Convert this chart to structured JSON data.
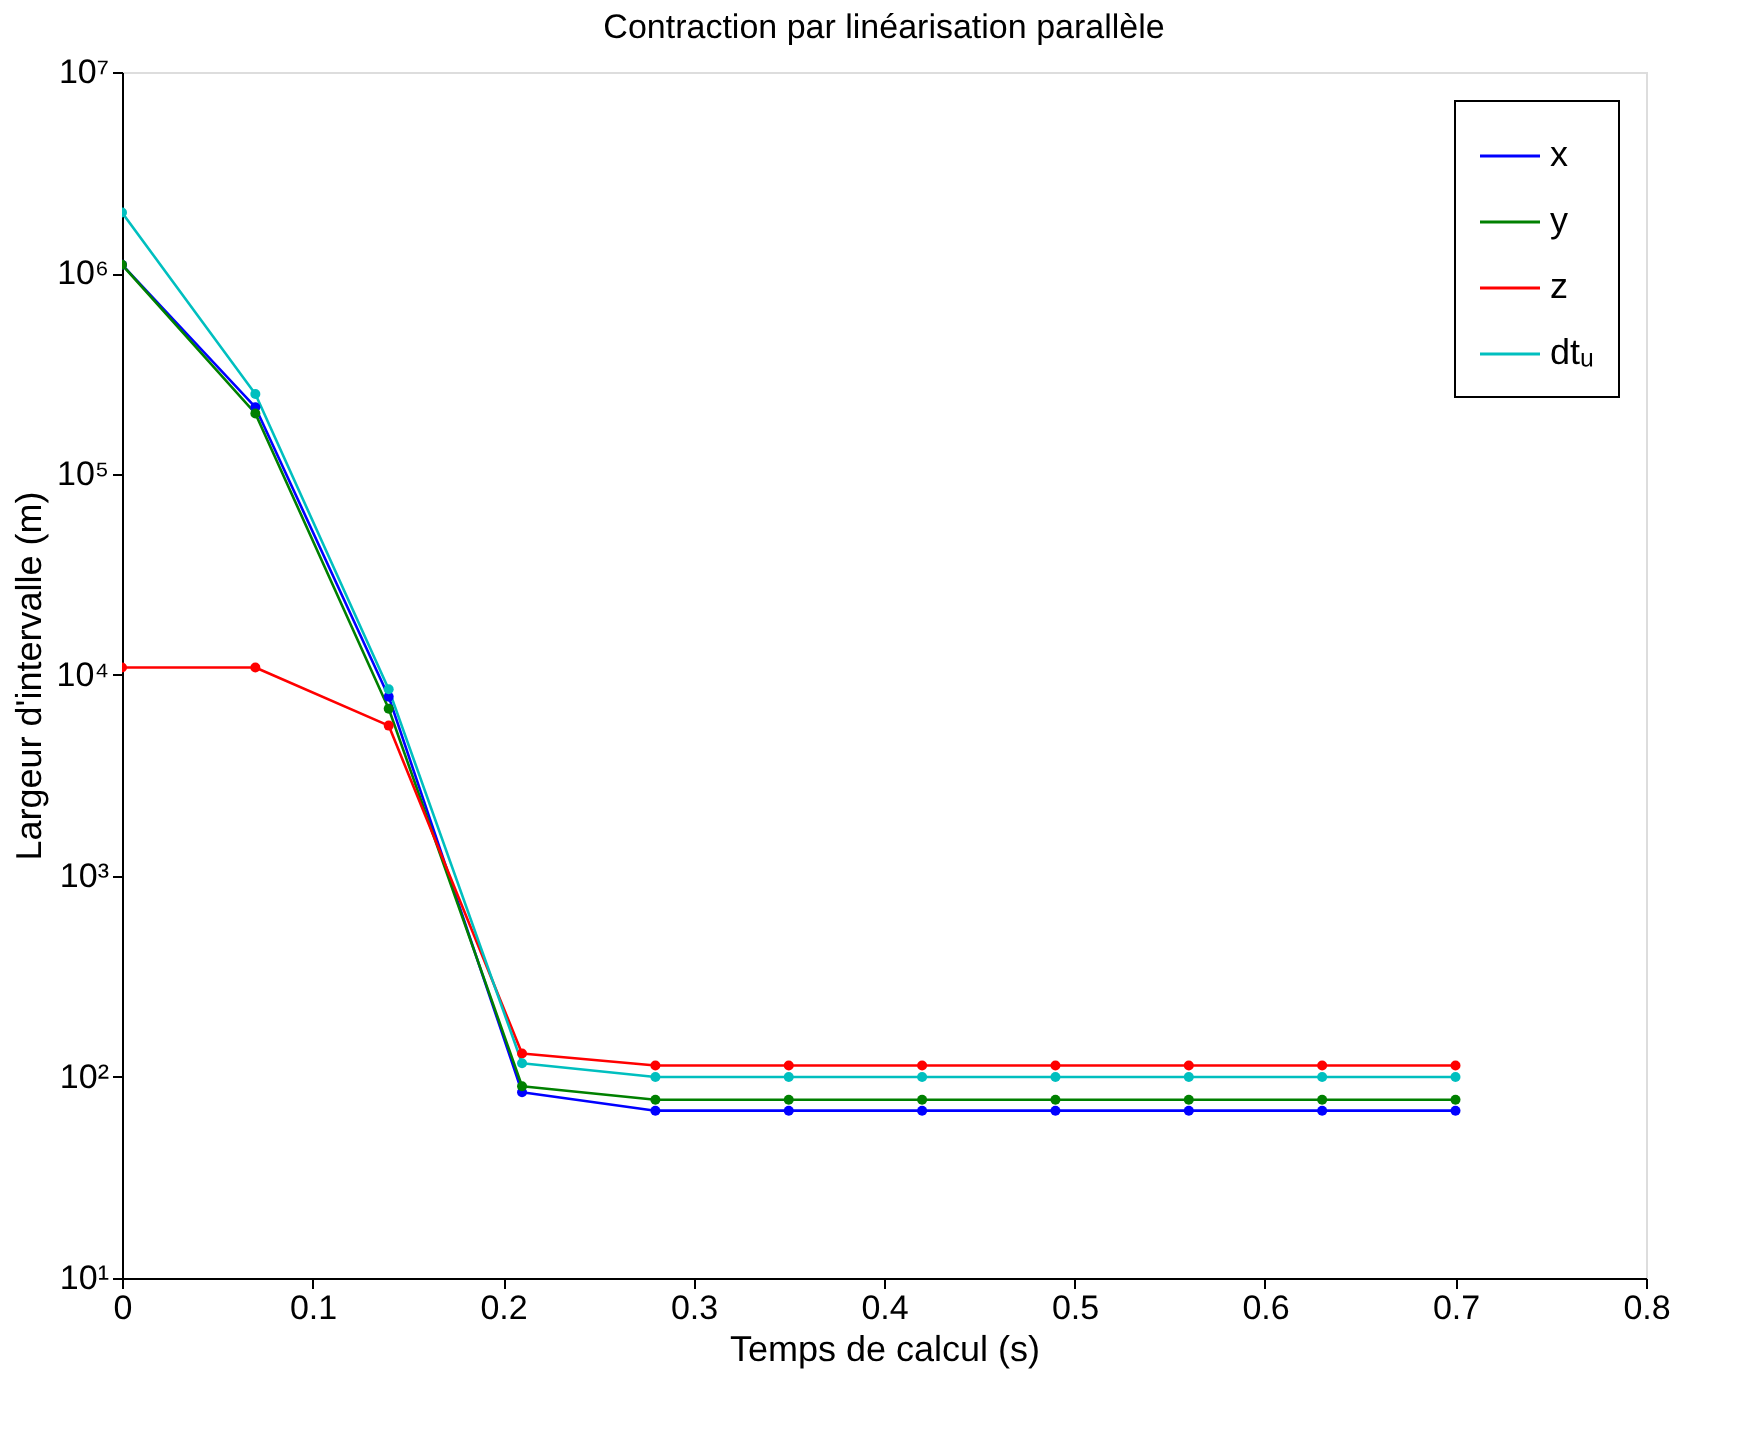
{
  "chart_data": {
    "type": "line",
    "title": "Contraction par linéarisation parallèle",
    "xlabel": "Temps de calcul (s)",
    "ylabel": "Largeur d'intervalle (m)",
    "x": [
      0,
      0.07,
      0.14,
      0.21,
      0.28,
      0.35,
      0.42,
      0.49,
      0.56,
      0.63,
      0.7
    ],
    "series": [
      {
        "name": "x",
        "color": "#0000ff",
        "values": [
          1100000,
          215000,
          7800,
          84,
          68,
          68,
          68,
          68,
          68,
          68,
          68
        ]
      },
      {
        "name": "y",
        "color": "#008000",
        "values": [
          1100000,
          200000,
          6800,
          90,
          77,
          77,
          77,
          77,
          77,
          77,
          77
        ]
      },
      {
        "name": "z",
        "color": "#ff0000",
        "values": [
          10900,
          10900,
          5600,
          131,
          114,
          114,
          114,
          114,
          114,
          114,
          114
        ]
      },
      {
        "name": "dtᵤ",
        "color": "#00bfbf",
        "values": [
          2000000,
          250000,
          8500,
          117,
          100,
          100,
          100,
          100,
          100,
          100,
          100
        ]
      }
    ],
    "log": "y",
    "xlim": [
      0,
      0.8
    ],
    "xticks": [
      0,
      0.1,
      0.2,
      0.3,
      0.4,
      0.5,
      0.6,
      0.7,
      0.8
    ],
    "ylim": [
      10,
      10000000
    ],
    "yticks": [
      {
        "value": 10,
        "label": "10¹"
      },
      {
        "value": 100,
        "label": "10²"
      },
      {
        "value": 1000,
        "label": "10³"
      },
      {
        "value": 10000,
        "label": "10⁴"
      },
      {
        "value": 100000,
        "label": "10⁵"
      },
      {
        "value": 1000000,
        "label": "10⁶"
      },
      {
        "value": 10000000,
        "label": "10⁷"
      }
    ],
    "grid": false,
    "legend": "top right",
    "marker": "circle",
    "line_style": "solid"
  }
}
